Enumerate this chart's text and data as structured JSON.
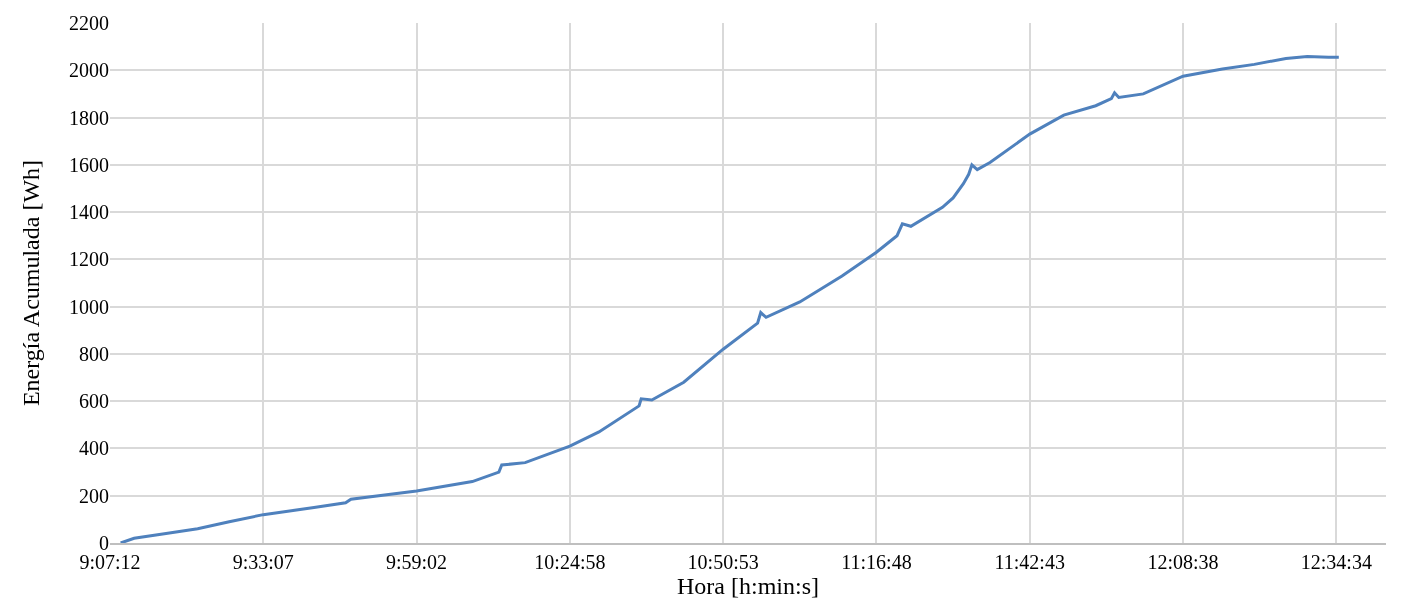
{
  "chart_data": {
    "type": "line",
    "xlabel": "Hora [h:min:s]",
    "ylabel": "Energía Acumulada [Wh]",
    "xlim": [
      9.12,
      12.716
    ],
    "ylim": [
      0,
      2200
    ],
    "xticks": [
      {
        "value": 9.12,
        "label": "9:07:12"
      },
      {
        "value": 9.551944,
        "label": "9:33:07"
      },
      {
        "value": 9.983889,
        "label": "9:59:02"
      },
      {
        "value": 10.416111,
        "label": "10:24:58"
      },
      {
        "value": 10.848056,
        "label": "10:50:53"
      },
      {
        "value": 11.28,
        "label": "11:16:48"
      },
      {
        "value": 11.711944,
        "label": "11:42:43"
      },
      {
        "value": 12.143889,
        "label": "12:08:38"
      },
      {
        "value": 12.576111,
        "label": "12:34:34"
      }
    ],
    "yticks": [
      0,
      200,
      400,
      600,
      800,
      1000,
      1200,
      1400,
      1600,
      1800,
      2000,
      2200
    ],
    "grid": true,
    "marker": "none",
    "line_style": "solid",
    "series": [
      {
        "color": "#4f81bd",
        "x": [
          9.15,
          9.188,
          9.278,
          9.367,
          9.456,
          9.552,
          9.695,
          9.784,
          9.799,
          9.984,
          10.141,
          10.216,
          10.224,
          10.29,
          10.416,
          10.498,
          10.611,
          10.617,
          10.647,
          10.737,
          10.848,
          10.945,
          10.954,
          10.969,
          11.064,
          11.183,
          11.28,
          11.338,
          11.353,
          11.377,
          11.466,
          11.496,
          11.525,
          11.54,
          11.549,
          11.564,
          11.6,
          11.712,
          11.808,
          11.898,
          11.942,
          11.951,
          11.963,
          12.032,
          12.144,
          12.255,
          12.345,
          12.434,
          12.494,
          12.554,
          12.583
        ],
        "values": [
          0,
          20,
          40,
          60,
          90,
          120,
          150,
          170,
          185,
          220,
          260,
          300,
          330,
          340,
          410,
          470,
          580,
          610,
          605,
          680,
          820,
          930,
          975,
          955,
          1020,
          1130,
          1230,
          1300,
          1350,
          1340,
          1420,
          1460,
          1520,
          1560,
          1600,
          1580,
          1610,
          1730,
          1810,
          1850,
          1880,
          1905,
          1885,
          1900,
          1975,
          2005,
          2025,
          2050,
          2058,
          2055,
          2055
        ]
      }
    ]
  }
}
